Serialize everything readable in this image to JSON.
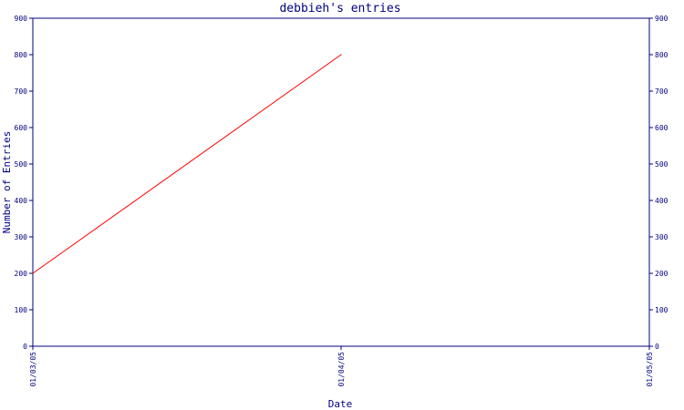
{
  "chart_data": {
    "type": "line",
    "title": "debbieh's entries",
    "xlabel": "Date",
    "ylabel": "Number of Entries",
    "x_tick_labels": [
      "01/03/05",
      "01/04/05",
      "01/05/05"
    ],
    "y_ticks": [
      0,
      100,
      200,
      300,
      400,
      500,
      600,
      700,
      800,
      900
    ],
    "xlim": [
      "01/03/05",
      "01/05/05"
    ],
    "ylim": [
      0,
      900
    ],
    "grid": false,
    "series": [
      {
        "color": "#ff0000",
        "points": [
          {
            "x": "01/03/05",
            "y": 200
          },
          {
            "x": "01/04/05",
            "y": 800
          }
        ]
      }
    ],
    "colors": {
      "axis": "#000080",
      "text": "#000080",
      "series": "#ff0000",
      "background": "#ffffff"
    }
  }
}
